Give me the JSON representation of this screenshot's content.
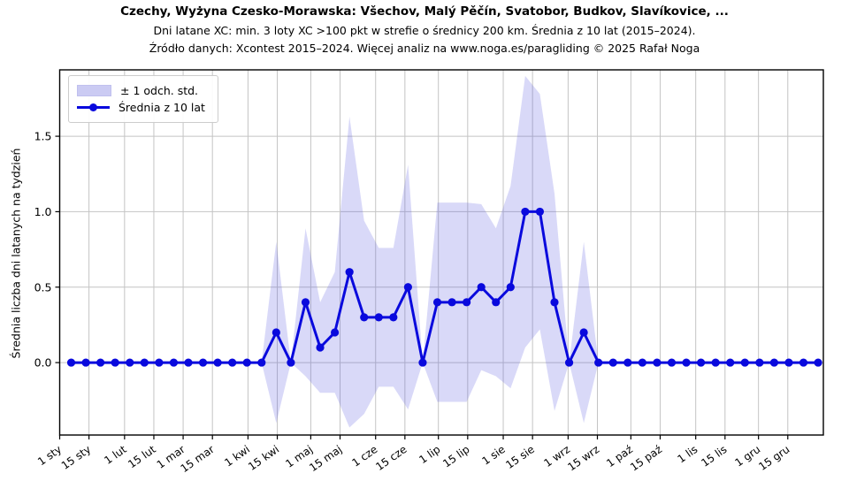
{
  "header": {
    "title": "Czechy, Wyżyna Czesko-Morawska: Všechov, Malý Pěčín, Svatobor, Budkov, Slavíkovice, ...",
    "subtitle1": "Dni latane XC: min. 3 loty XC >100 pkt w strefie o średnicy 200 km. Średnia z 10 lat (2015–2024).",
    "subtitle2": "Źródło danych: Xcontest 2015–2024. Więcej analiz na www.noga.es/paragliding © 2025 Rafał Noga"
  },
  "legend": {
    "items": [
      {
        "label": "± 1 odch. std."
      },
      {
        "label": "Średnia z 10 lat"
      }
    ]
  },
  "colors": {
    "line": "#0909dd",
    "band_fill": "rgba(80,80,225,0.22)",
    "band_legend": "#cbcbf3",
    "grid": "#c4c4c4",
    "spine": "#000000"
  },
  "chart_data": {
    "type": "line",
    "title": "Czechy, Wyżyna Czesko-Morawska: Všechov, Malý Pěčín, Svatobor, Budkov, Slavíkovice, ...",
    "xlabel": "",
    "ylabel": "Średnia liczba dni latanych na tydzień",
    "xlim": [
      0,
      365
    ],
    "ylim": [
      -0.48,
      1.94
    ],
    "grid": true,
    "legend_position": "upper left",
    "yticks": [
      {
        "label": "0.0",
        "value": 0.0
      },
      {
        "label": "0.5",
        "value": 0.5
      },
      {
        "label": "1.0",
        "value": 1.0
      },
      {
        "label": "1.5",
        "value": 1.5
      }
    ],
    "xticks": [
      {
        "label": "1 sty",
        "day": 0
      },
      {
        "label": "15 sty",
        "day": 14
      },
      {
        "label": "1 lut",
        "day": 31
      },
      {
        "label": "15 lut",
        "day": 45
      },
      {
        "label": "1 mar",
        "day": 59
      },
      {
        "label": "15 mar",
        "day": 73
      },
      {
        "label": "1 kwi",
        "day": 90
      },
      {
        "label": "15 kwi",
        "day": 104
      },
      {
        "label": "1 maj",
        "day": 120
      },
      {
        "label": "15 maj",
        "day": 134
      },
      {
        "label": "1 cze",
        "day": 151
      },
      {
        "label": "15 cze",
        "day": 165
      },
      {
        "label": "1 lip",
        "day": 181
      },
      {
        "label": "15 lip",
        "day": 195
      },
      {
        "label": "1 sie",
        "day": 212
      },
      {
        "label": "15 sie",
        "day": 226
      },
      {
        "label": "1 wrz",
        "day": 243
      },
      {
        "label": "15 wrz",
        "day": 257
      },
      {
        "label": "1 paź",
        "day": 273
      },
      {
        "label": "15 paź",
        "day": 287
      },
      {
        "label": "1 lis",
        "day": 304
      },
      {
        "label": "15 lis",
        "day": 318
      },
      {
        "label": "1 gru",
        "day": 334
      },
      {
        "label": "15 gru",
        "day": 348
      }
    ],
    "x_start_day": 5.5,
    "x_step_days": 7,
    "series": [
      {
        "name": "Średnia z 10 lat",
        "values": [
          0,
          0,
          0,
          0,
          0,
          0,
          0,
          0,
          0,
          0,
          0,
          0,
          0,
          0,
          0.2,
          0,
          0.4,
          0.1,
          0.2,
          0.6,
          0.3,
          0.3,
          0.3,
          0.5,
          0,
          0.4,
          0.4,
          0.4,
          0.5,
          0.4,
          0.5,
          1.0,
          1.0,
          0.4,
          0,
          0.2,
          0,
          0,
          0,
          0,
          0,
          0,
          0,
          0,
          0,
          0,
          0,
          0,
          0,
          0,
          0,
          0
        ]
      }
    ],
    "band": {
      "name": "± 1 odch. std.",
      "upper": [
        0,
        0,
        0,
        0,
        0,
        0,
        0,
        0,
        0,
        0,
        0,
        0,
        0,
        0,
        0.8,
        0,
        0.89,
        0.4,
        0.6,
        1.63,
        0.94,
        0.76,
        0.76,
        1.31,
        0,
        1.06,
        1.06,
        1.06,
        1.05,
        0.89,
        1.17,
        1.9,
        1.78,
        1.12,
        0,
        0.8,
        0,
        0,
        0,
        0,
        0,
        0,
        0,
        0,
        0,
        0,
        0,
        0,
        0,
        0,
        0,
        0
      ],
      "lower": [
        0,
        0,
        0,
        0,
        0,
        0,
        0,
        0,
        0,
        0,
        0,
        0,
        0,
        0,
        -0.4,
        0,
        -0.09,
        -0.2,
        -0.2,
        -0.43,
        -0.34,
        -0.16,
        -0.16,
        -0.31,
        0,
        -0.26,
        -0.26,
        -0.26,
        -0.05,
        -0.09,
        -0.17,
        0.1,
        0.22,
        -0.32,
        0,
        -0.4,
        0,
        0,
        0,
        0,
        0,
        0,
        0,
        0,
        0,
        0,
        0,
        0,
        0,
        0,
        0,
        0
      ]
    }
  }
}
